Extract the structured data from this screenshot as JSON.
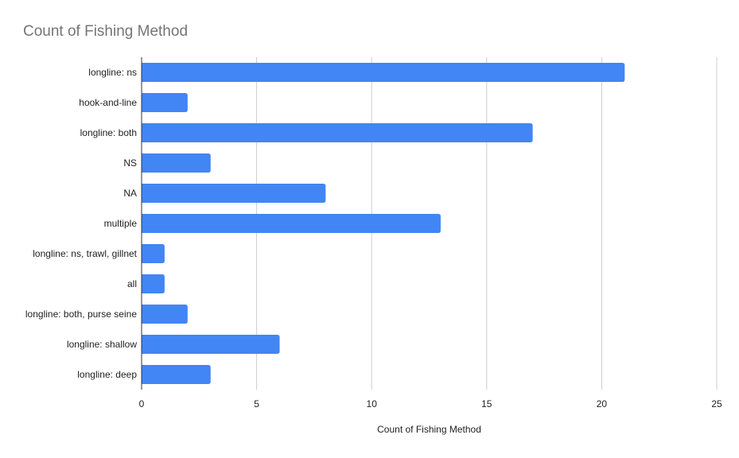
{
  "chart_data": {
    "type": "bar",
    "orientation": "horizontal",
    "title": "Count of Fishing Method",
    "xlabel": "Count of Fishing Method",
    "ylabel": "",
    "categories": [
      "longline: ns",
      "hook-and-line",
      "longline: both",
      "NS",
      "NA",
      "multiple",
      "longline: ns, trawl, gillnet",
      "all",
      "longline: both, purse seine",
      "longline: shallow",
      "longline: deep"
    ],
    "values": [
      21,
      2,
      17,
      3,
      8,
      13,
      1,
      1,
      2,
      6,
      3
    ],
    "xlim": [
      0,
      25
    ],
    "xticks": [
      0,
      5,
      10,
      15,
      20,
      25
    ],
    "grid": true,
    "legend": "none",
    "bar_color": "#4285f4",
    "grid_color": "#cccccc",
    "axis_color": "#333333"
  }
}
